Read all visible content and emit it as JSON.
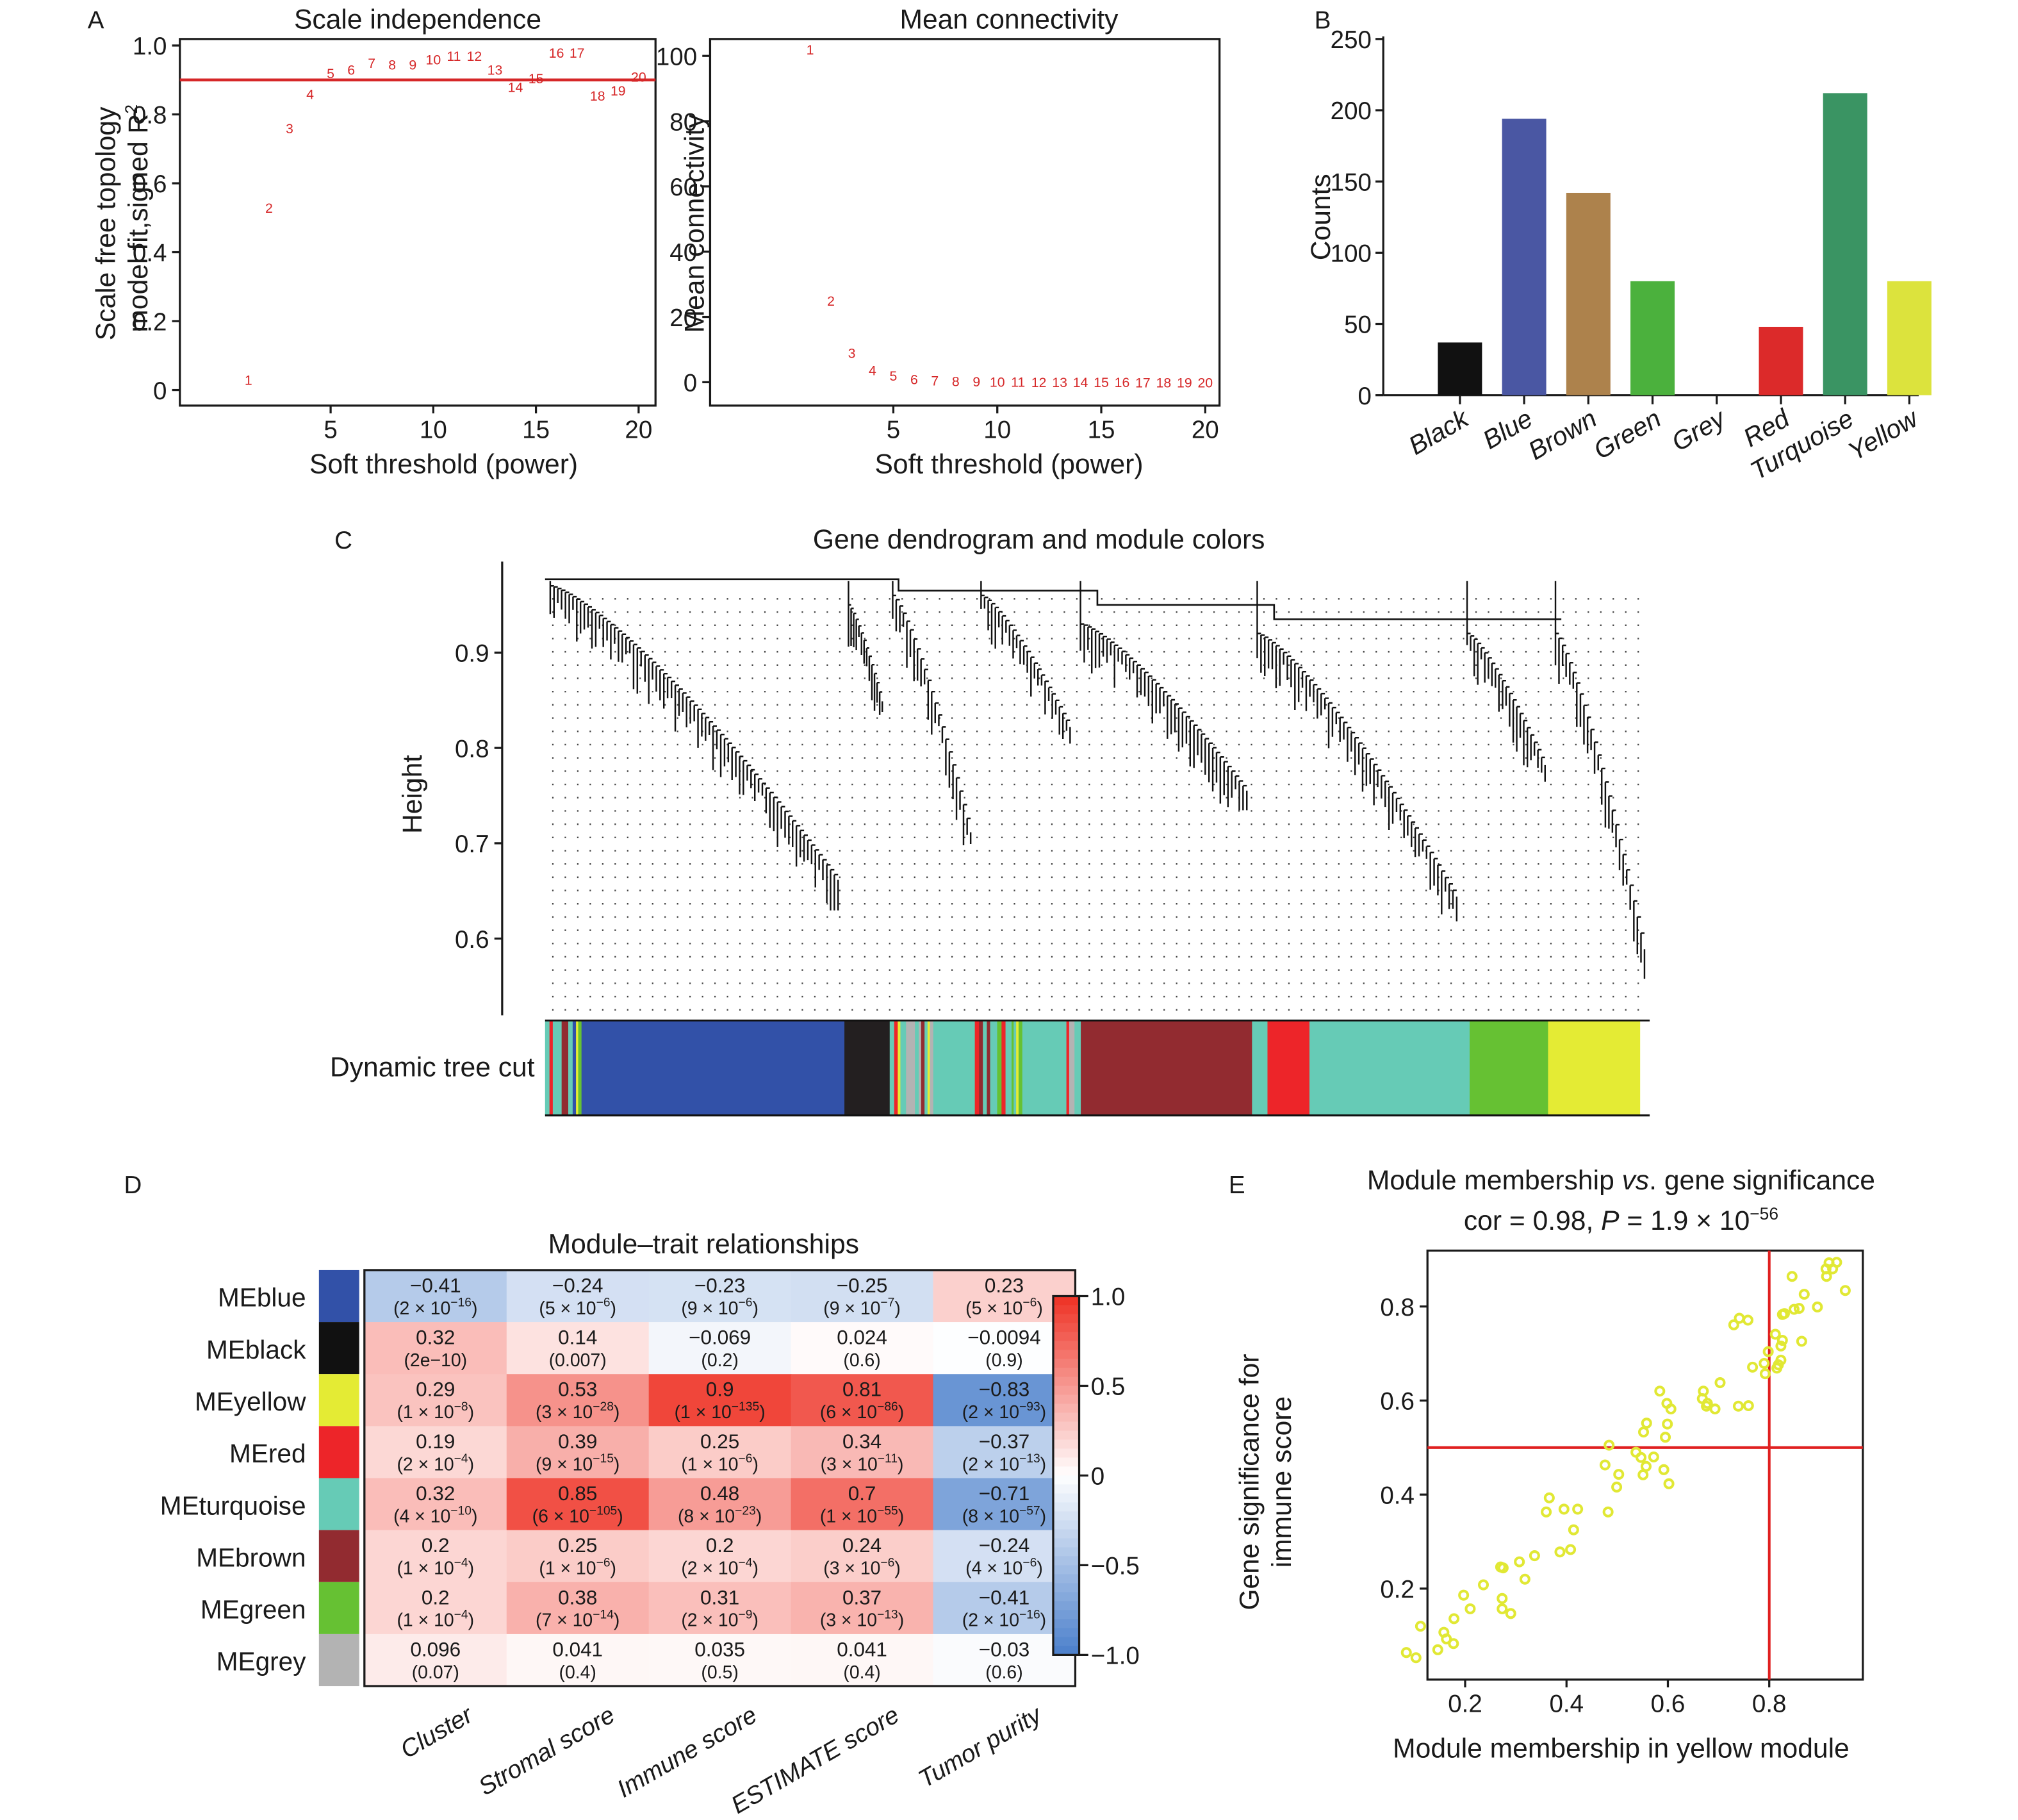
{
  "panels": {
    "A": "A",
    "B": "B",
    "C": "C",
    "D": "D",
    "E": "E"
  },
  "chart_data": [
    {
      "id": "scale_independence",
      "type": "scatter",
      "title": "Scale independence",
      "xlabel": "Soft threshold (power)",
      "ylabel_line1": "Scale free topology",
      "ylabel_line2": "model fit,signed R",
      "ylabel_sup": "2",
      "xlim": [
        0.5,
        20.7
      ],
      "ylim": [
        -0.02,
        1.05
      ],
      "xticks": [
        5,
        10,
        15,
        20
      ],
      "yticks": [
        0,
        0.2,
        0.4,
        0.6,
        0.8,
        1.0
      ],
      "ytick_labels": [
        "0",
        "0.2",
        "0.4",
        "0.6",
        "0.8",
        "1.0"
      ],
      "threshold_line": 0.9,
      "marker_color": "#d62728",
      "points": [
        {
          "x": 1,
          "y": 0.03
        },
        {
          "x": 2,
          "y": 0.53
        },
        {
          "x": 3,
          "y": 0.76
        },
        {
          "x": 4,
          "y": 0.86
        },
        {
          "x": 5,
          "y": 0.92
        },
        {
          "x": 6,
          "y": 0.93
        },
        {
          "x": 7,
          "y": 0.95
        },
        {
          "x": 8,
          "y": 0.945
        },
        {
          "x": 9,
          "y": 0.945
        },
        {
          "x": 10,
          "y": 0.96
        },
        {
          "x": 11,
          "y": 0.97
        },
        {
          "x": 12,
          "y": 0.97
        },
        {
          "x": 13,
          "y": 0.93
        },
        {
          "x": 14,
          "y": 0.88
        },
        {
          "x": 15,
          "y": 0.905
        },
        {
          "x": 16,
          "y": 0.98
        },
        {
          "x": 17,
          "y": 0.98
        },
        {
          "x": 18,
          "y": 0.855
        },
        {
          "x": 19,
          "y": 0.87
        },
        {
          "x": 20,
          "y": 0.91
        }
      ]
    },
    {
      "id": "mean_connectivity",
      "type": "scatter",
      "title": "Mean connectivity",
      "xlabel": "Soft threshold (power)",
      "ylabel": "Mean connectivity",
      "xlim": [
        0.5,
        20.7
      ],
      "ylim": [
        -4,
        106
      ],
      "xticks": [
        5,
        10,
        15,
        20
      ],
      "yticks": [
        0,
        20,
        40,
        60,
        80,
        100
      ],
      "marker_color": "#d62728",
      "points": [
        {
          "x": 1,
          "y": 102
        },
        {
          "x": 2,
          "y": 25
        },
        {
          "x": 3,
          "y": 9
        },
        {
          "x": 4,
          "y": 3.7
        },
        {
          "x": 5,
          "y": 2.1
        },
        {
          "x": 6,
          "y": 1.0
        },
        {
          "x": 7,
          "y": 0.6
        },
        {
          "x": 8,
          "y": 0.4
        },
        {
          "x": 9,
          "y": 0.3
        },
        {
          "x": 10,
          "y": 0.2
        },
        {
          "x": 11,
          "y": 0.2
        },
        {
          "x": 12,
          "y": 0.1
        },
        {
          "x": 13,
          "y": 0.1
        },
        {
          "x": 14,
          "y": 0.1
        },
        {
          "x": 15,
          "y": 0.1
        },
        {
          "x": 16,
          "y": 0.1
        },
        {
          "x": 17,
          "y": 0.0
        },
        {
          "x": 18,
          "y": 0.0
        },
        {
          "x": 19,
          "y": 0.0
        },
        {
          "x": 20,
          "y": 0.0
        }
      ]
    },
    {
      "id": "module_counts",
      "type": "bar",
      "title": "",
      "xlabel": "",
      "ylabel": "Counts",
      "ylim": [
        0,
        250
      ],
      "yticks": [
        0,
        50,
        100,
        150,
        200,
        250
      ],
      "categories": [
        "Black",
        "Blue",
        "Brown",
        "Green",
        "Grey",
        "Red",
        "Turquoise",
        "Yellow"
      ],
      "values": [
        37,
        194,
        142,
        80,
        0,
        48,
        212,
        80
      ],
      "colors": [
        "#111111",
        "#4a57a3",
        "#ad824c",
        "#4bb13d",
        "#b3b3b3",
        "#dc2a2a",
        "#3a9463",
        "#dce33d"
      ]
    },
    {
      "id": "gene_dendrogram",
      "type": "dendrogram",
      "title": "Gene dendrogram and module colors",
      "ylabel": "Height",
      "yticks": [
        0.6,
        0.7,
        0.8,
        0.9
      ],
      "ylim": [
        0.52,
        0.99
      ],
      "color_bar_label": "Dynamic tree cut",
      "color_bar_segments": [
        {
          "color": "turquoise",
          "share": 0.004
        },
        {
          "color": "red",
          "share": 0.003
        },
        {
          "color": "turquoise",
          "share": 0.008
        },
        {
          "color": "brown",
          "share": 0.006
        },
        {
          "color": "turquoise",
          "share": 0.004
        },
        {
          "color": "blue",
          "share": 0.003
        },
        {
          "color": "yellow",
          "share": 0.002
        },
        {
          "color": "green",
          "share": 0.003
        },
        {
          "color": "blue",
          "share": 0.238
        },
        {
          "color": "black",
          "share": 0.041
        },
        {
          "color": "mixed",
          "share": 0.04
        },
        {
          "color": "turquoise",
          "share": 0.033
        },
        {
          "color": "mixed",
          "share": 0.05
        },
        {
          "color": "turquoise",
          "share": 0.032
        },
        {
          "color": "mixed",
          "share": 0.018
        },
        {
          "color": "brown",
          "share": 0.155
        },
        {
          "color": "turquoise",
          "share": 0.014
        },
        {
          "color": "red",
          "share": 0.038
        },
        {
          "color": "turquoise",
          "share": 0.145
        },
        {
          "color": "green",
          "share": 0.071
        },
        {
          "color": "yellow",
          "share": 0.083
        }
      ],
      "module_colors": {
        "blue": "#3251a8",
        "black": "#231f20",
        "turquoise": "#66cbb6",
        "brown": "#922b30",
        "red": "#ed2529",
        "green": "#66c133",
        "yellow": "#e4eb34",
        "grey": "#b3b3b3"
      },
      "major_branches": [
        {
          "start": 0.0,
          "end": 0.27,
          "top": 0.97,
          "bottom": 0.635
        },
        {
          "start": 0.27,
          "end": 0.31,
          "top": 0.95,
          "bottom": 0.84
        },
        {
          "start": 0.31,
          "end": 0.39,
          "top": 0.96,
          "bottom": 0.69
        },
        {
          "start": 0.39,
          "end": 0.48,
          "top": 0.96,
          "bottom": 0.81
        },
        {
          "start": 0.48,
          "end": 0.64,
          "top": 0.93,
          "bottom": 0.74
        },
        {
          "start": 0.64,
          "end": 0.83,
          "top": 0.92,
          "bottom": 0.62
        },
        {
          "start": 0.83,
          "end": 0.91,
          "top": 0.92,
          "bottom": 0.77
        },
        {
          "start": 0.91,
          "end": 1.0,
          "top": 0.92,
          "bottom": 0.56
        }
      ]
    },
    {
      "id": "module_trait_relationships",
      "type": "heatmap",
      "title": "Module–trait relationships",
      "rows": [
        "MEblue",
        "MEblack",
        "MEyellow",
        "MEred",
        "MEturquoise",
        "MEbrown",
        "MEgreen",
        "MEgrey"
      ],
      "row_colors": [
        "#3251a8",
        "#111111",
        "#e4eb34",
        "#ed2529",
        "#66cbb6",
        "#922b30",
        "#66c133",
        "#b3b3b3"
      ],
      "columns": [
        "Cluster",
        "Stromal score",
        "Immune score",
        "ESTIMATE score",
        "Tumor purity"
      ],
      "correlations": [
        [
          -0.41,
          -0.24,
          -0.23,
          -0.25,
          0.23
        ],
        [
          0.32,
          0.14,
          -0.069,
          0.024,
          -0.0094
        ],
        [
          0.29,
          0.53,
          0.9,
          0.81,
          -0.83
        ],
        [
          0.19,
          0.39,
          0.25,
          0.34,
          -0.37
        ],
        [
          0.32,
          0.85,
          0.48,
          0.7,
          -0.71
        ],
        [
          0.2,
          0.25,
          0.2,
          0.24,
          -0.24
        ],
        [
          0.2,
          0.38,
          0.31,
          0.37,
          -0.41
        ],
        [
          0.096,
          0.041,
          0.035,
          0.041,
          -0.03
        ]
      ],
      "correlation_labels": [
        [
          "−0.41",
          "−0.24",
          "−0.23",
          "−0.25",
          "0.23"
        ],
        [
          "0.32",
          "0.14",
          "−0.069",
          "0.024",
          "−0.0094"
        ],
        [
          "0.29",
          "0.53",
          "0.9",
          "0.81",
          "−0.83"
        ],
        [
          "0.19",
          "0.39",
          "0.25",
          "0.34",
          "−0.37"
        ],
        [
          "0.32",
          "0.85",
          "0.48",
          "0.7",
          "−0.71"
        ],
        [
          "0.2",
          "0.25",
          "0.2",
          "0.24",
          "−0.24"
        ],
        [
          "0.2",
          "0.38",
          "0.31",
          "0.37",
          "−0.41"
        ],
        [
          "0.096",
          "0.041",
          "0.035",
          "0.041",
          "−0.03"
        ]
      ],
      "p_values": [
        [
          {
            "m": "2",
            "e": "−16"
          },
          {
            "m": "5",
            "e": "−6"
          },
          {
            "m": "9",
            "e": "−6"
          },
          {
            "m": "9",
            "e": "−7"
          },
          {
            "m": "5",
            "e": "−6"
          }
        ],
        [
          {
            "plain": "2e−10"
          },
          {
            "plain": "0.007"
          },
          {
            "plain": "0.2"
          },
          {
            "plain": "0.6"
          },
          {
            "plain": "0.9"
          }
        ],
        [
          {
            "m": "1",
            "e": "−8"
          },
          {
            "m": "3",
            "e": "−28"
          },
          {
            "m": "1",
            "e": "−135"
          },
          {
            "m": "6",
            "e": "−86"
          },
          {
            "m": "2",
            "e": "−93"
          }
        ],
        [
          {
            "m": "2",
            "e": "−4"
          },
          {
            "m": "9",
            "e": "−15"
          },
          {
            "m": "1",
            "e": "−6"
          },
          {
            "m": "3",
            "e": "−11"
          },
          {
            "m": "2",
            "e": "−13"
          }
        ],
        [
          {
            "m": "4",
            "e": "−10"
          },
          {
            "m": "6",
            "e": "−105"
          },
          {
            "m": "8",
            "e": "−23"
          },
          {
            "m": "1",
            "e": "−55"
          },
          {
            "m": "8",
            "e": "−57"
          }
        ],
        [
          {
            "m": "1",
            "e": "−4"
          },
          {
            "m": "1",
            "e": "−6"
          },
          {
            "m": "2",
            "e": "−4"
          },
          {
            "m": "3",
            "e": "−6"
          },
          {
            "m": "4",
            "e": "−6"
          }
        ],
        [
          {
            "m": "1",
            "e": "−4"
          },
          {
            "m": "7",
            "e": "−14"
          },
          {
            "m": "2",
            "e": "−9"
          },
          {
            "m": "3",
            "e": "−13"
          },
          {
            "m": "2",
            "e": "−16"
          }
        ],
        [
          {
            "plain": "0.07"
          },
          {
            "plain": "0.4"
          },
          {
            "plain": "0.5"
          },
          {
            "plain": "0.4"
          },
          {
            "plain": "0.6"
          }
        ]
      ],
      "colorscale": {
        "min": -1.0,
        "max": 1.0,
        "low": "#4a7fcb",
        "mid": "#ffffff",
        "high": "#ee3124"
      },
      "legend_ticks": [
        1.0,
        0.5,
        0,
        -0.5,
        -1.0
      ],
      "legend_tick_labels": [
        "1.0",
        "0.5",
        "0",
        "−0.5",
        "−1.0"
      ],
      "legend_position": "right"
    },
    {
      "id": "mm_vs_gs",
      "type": "scatter",
      "title_part1": "Module membership ",
      "title_italic": "vs",
      "title_part2": ". gene significance",
      "subtitle_prefix": "cor = 0.98, ",
      "subtitle_p": "P",
      "subtitle_mid": " = 1.9 × 10",
      "subtitle_exp": "−56",
      "xlabel": "Module membership in yellow module",
      "ylabel_line1": "Gene significance for",
      "ylabel_line2": "immune score",
      "xlim": [
        0.05,
        0.98
      ],
      "ylim": [
        0.025,
        0.935
      ],
      "xticks": [
        0.2,
        0.4,
        0.6,
        0.8
      ],
      "yticks": [
        0.2,
        0.4,
        0.6,
        0.8
      ],
      "vline": 0.8,
      "hline": 0.5,
      "marker_color": "#e1e834",
      "line_color": "#e02020",
      "points": [
        [
          0.084,
          0.064
        ],
        [
          0.103,
          0.053
        ],
        [
          0.112,
          0.12
        ],
        [
          0.146,
          0.07
        ],
        [
          0.158,
          0.107
        ],
        [
          0.163,
          0.093
        ],
        [
          0.177,
          0.083
        ],
        [
          0.178,
          0.136
        ],
        [
          0.197,
          0.186
        ],
        [
          0.21,
          0.157
        ],
        [
          0.236,
          0.208
        ],
        [
          0.27,
          0.246
        ],
        [
          0.275,
          0.244
        ],
        [
          0.273,
          0.179
        ],
        [
          0.273,
          0.157
        ],
        [
          0.29,
          0.147
        ],
        [
          0.307,
          0.257
        ],
        [
          0.318,
          0.22
        ],
        [
          0.337,
          0.27
        ],
        [
          0.36,
          0.363
        ],
        [
          0.366,
          0.393
        ],
        [
          0.387,
          0.278
        ],
        [
          0.395,
          0.369
        ],
        [
          0.408,
          0.283
        ],
        [
          0.414,
          0.325
        ],
        [
          0.422,
          0.369
        ],
        [
          0.476,
          0.463
        ],
        [
          0.482,
          0.363
        ],
        [
          0.484,
          0.505
        ],
        [
          0.499,
          0.416
        ],
        [
          0.503,
          0.443
        ],
        [
          0.537,
          0.49
        ],
        [
          0.547,
          0.479
        ],
        [
          0.551,
          0.442
        ],
        [
          0.552,
          0.533
        ],
        [
          0.557,
          0.46
        ],
        [
          0.558,
          0.552
        ],
        [
          0.572,
          0.48
        ],
        [
          0.584,
          0.62
        ],
        [
          0.592,
          0.453
        ],
        [
          0.595,
          0.522
        ],
        [
          0.598,
          0.594
        ],
        [
          0.599,
          0.55
        ],
        [
          0.602,
          0.423
        ],
        [
          0.606,
          0.582
        ],
        [
          0.668,
          0.604
        ],
        [
          0.67,
          0.62
        ],
        [
          0.676,
          0.588
        ],
        [
          0.678,
          0.594
        ],
        [
          0.693,
          0.582
        ],
        [
          0.703,
          0.638
        ],
        [
          0.73,
          0.761
        ],
        [
          0.739,
          0.588
        ],
        [
          0.741,
          0.775
        ],
        [
          0.758,
          0.771
        ],
        [
          0.759,
          0.589
        ],
        [
          0.767,
          0.671
        ],
        [
          0.79,
          0.679
        ],
        [
          0.792,
          0.657
        ],
        [
          0.798,
          0.704
        ],
        [
          0.812,
          0.741
        ],
        [
          0.815,
          0.669
        ],
        [
          0.818,
          0.676
        ],
        [
          0.823,
          0.716
        ],
        [
          0.823,
          0.686
        ],
        [
          0.826,
          0.728
        ],
        [
          0.826,
          0.783
        ],
        [
          0.83,
          0.785
        ],
        [
          0.845,
          0.864
        ],
        [
          0.849,
          0.794
        ],
        [
          0.859,
          0.796
        ],
        [
          0.864,
          0.726
        ],
        [
          0.869,
          0.826
        ],
        [
          0.895,
          0.799
        ],
        [
          0.912,
          0.88
        ],
        [
          0.913,
          0.864
        ],
        [
          0.918,
          0.893
        ],
        [
          0.925,
          0.88
        ],
        [
          0.933,
          0.894
        ],
        [
          0.95,
          0.834
        ]
      ]
    }
  ]
}
